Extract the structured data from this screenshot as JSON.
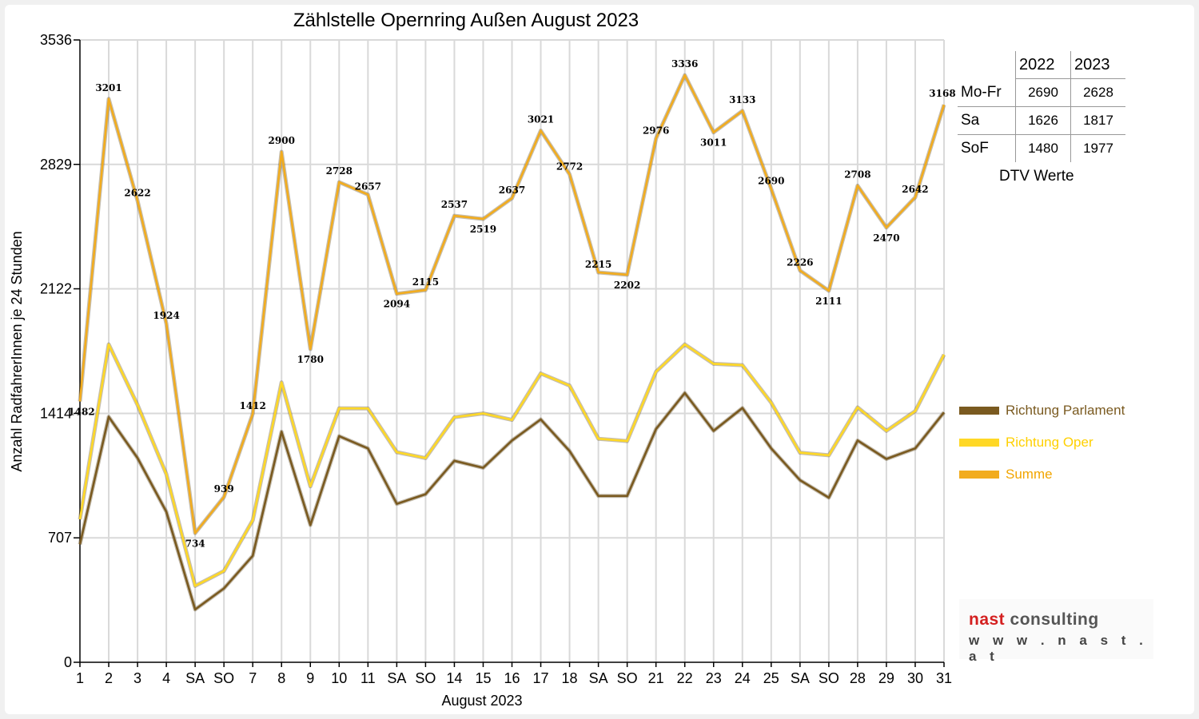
{
  "title": "Zählstelle Opernring Außen August 2023",
  "chart_data": {
    "type": "line",
    "title": "Zählstelle Opernring Außen August 2023",
    "xlabel": "August 2023",
    "ylabel": "Anzahl RadfahrerInnen je 24 Stunden",
    "ylim": [
      0,
      3536
    ],
    "yticks": [
      "0",
      "707",
      "1414",
      "2122",
      "2829",
      "3536"
    ],
    "categories": [
      "1",
      "2",
      "3",
      "4",
      "SA",
      "SO",
      "7",
      "8",
      "9",
      "10",
      "11",
      "SA",
      "SO",
      "14",
      "15",
      "16",
      "17",
      "18",
      "SA",
      "SO",
      "21",
      "22",
      "23",
      "24",
      "25",
      "SA",
      "SO",
      "28",
      "29",
      "30",
      "31"
    ],
    "red_categories": [
      5,
      12,
      14,
      19,
      26
    ],
    "grid": true,
    "legend_position": "right",
    "series": [
      {
        "name": "Richtung Parlament",
        "color": "#7a5a20",
        "values": [
          670,
          1395,
          1160,
          855,
          300,
          420,
          605,
          1310,
          780,
          1285,
          1215,
          900,
          955,
          1145,
          1105,
          1260,
          1380,
          1200,
          945,
          945,
          1325,
          1530,
          1315,
          1445,
          1215,
          1035,
          935,
          1260,
          1155,
          1215,
          1420
        ]
      },
      {
        "name": "Richtung Oper",
        "color": "#ffd826",
        "values": [
          812,
          1806,
          1462,
          1069,
          434,
          519,
          807,
          1590,
          1000,
          1443,
          1442,
          1194,
          1160,
          1392,
          1414,
          1377,
          1641,
          1572,
          1270,
          1257,
          1651,
          1806,
          1696,
          1688,
          1475,
          1191,
          1176,
          1448,
          1315,
          1427,
          1748
        ]
      },
      {
        "name": "Summe",
        "color": "#f2ac1e",
        "values": [
          1482,
          3201,
          2622,
          1924,
          734,
          939,
          1412,
          2900,
          1780,
          2728,
          2657,
          2094,
          2115,
          2537,
          2519,
          2637,
          3021,
          2772,
          2215,
          2202,
          2976,
          3336,
          3011,
          3133,
          2690,
          2226,
          2111,
          2708,
          2470,
          2642,
          3168
        ]
      }
    ],
    "data_labels": [
      "1482",
      "3201",
      "2622",
      "1924",
      "734",
      "939",
      "1412",
      "2900",
      "1780",
      "2728",
      "2657",
      "2094",
      "2115",
      "2537",
      "2519",
      "2637",
      "3021",
      "2772",
      "2215",
      "2202",
      "2976",
      "3336",
      "3011",
      "3133",
      "2690",
      "2226",
      "2111",
      "2708",
      "2470",
      "2642",
      "3168"
    ]
  },
  "dtv": {
    "years": [
      "2022",
      "2023"
    ],
    "rows": [
      {
        "label": "Mo-Fr",
        "v2022": "2690",
        "v2023": "2628"
      },
      {
        "label": "Sa",
        "v2022": "1626",
        "v2023": "1817"
      },
      {
        "label": "SoF",
        "v2022": "1480",
        "v2023": "1977"
      }
    ],
    "caption": "DTV Werte"
  },
  "logo": {
    "brand_red": "nast",
    "brand_rest": " consulting",
    "url": "w w w . n a s t . a t"
  },
  "colors": {
    "parlament": "#7a5a20",
    "oper": "#ffd826",
    "summe": "#f2ac1e",
    "weekend_red": "#e00000",
    "grid": "#d9d9d9"
  }
}
